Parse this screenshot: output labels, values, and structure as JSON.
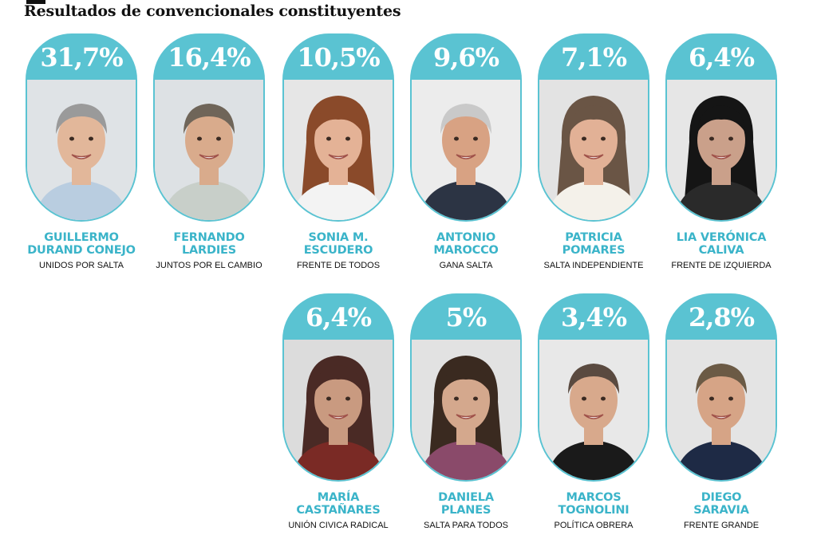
{
  "title": "Resultados de convencionales constituyentes",
  "colors": {
    "accent": "#5ac3d2",
    "name": "#3bb4c9"
  },
  "chart_data": {
    "type": "bar",
    "title": "Resultados de convencionales constituyentes",
    "categories": [
      "GUILLERMO DURAND CONEJO",
      "FERNANDO LARDIES",
      "SONIA M. ESCUDERO",
      "ANTONIO MAROCCO",
      "PATRICIA POMARES",
      "LIA VERÓNICA CALIVA",
      "MARÍA CASTAÑARES",
      "DANIELA PLANES",
      "MARCOS TOGNOLINI",
      "DIEGO SARAVIA"
    ],
    "values": [
      31.7,
      16.4,
      10.5,
      9.6,
      7.1,
      6.4,
      6.4,
      5,
      3.4,
      2.8
    ]
  },
  "candidates": [
    {
      "pct": "31,7%",
      "name1": "GUILLERMO",
      "name2": "DURAND CONEJO",
      "party": "UNIDOS POR SALTA"
    },
    {
      "pct": "16,4%",
      "name1": "FERNANDO",
      "name2": "LARDIES",
      "party": "JUNTOS POR EL CAMBIO"
    },
    {
      "pct": "10,5%",
      "name1": "SONIA M.",
      "name2": "ESCUDERO",
      "party": "FRENTE DE TODOS"
    },
    {
      "pct": "9,6%",
      "name1": "ANTONIO",
      "name2": "MAROCCO",
      "party": "GANA SALTA"
    },
    {
      "pct": "7,1%",
      "name1": "PATRICIA",
      "name2": "POMARES",
      "party": "SALTA INDEPENDIENTE"
    },
    {
      "pct": "6,4%",
      "name1": "LIA VERÓNICA",
      "name2": "CALIVA",
      "party": "FRENTE DE IZQUIERDA"
    },
    {
      "pct": "6,4%",
      "name1": "MARÍA",
      "name2": "CASTAÑARES",
      "party": "UNIÓN CIVICA RADICAL"
    },
    {
      "pct": "5%",
      "name1": "DANIELA",
      "name2": "PLANES",
      "party": "SALTA PARA TODOS"
    },
    {
      "pct": "3,4%",
      "name1": "MARCOS",
      "name2": "TOGNOLINI",
      "party": "POLÍTICA OBRERA"
    },
    {
      "pct": "2,8%",
      "name1": "DIEGO",
      "name2": "SARAVIA",
      "party": "FRENTE GRANDE"
    }
  ]
}
